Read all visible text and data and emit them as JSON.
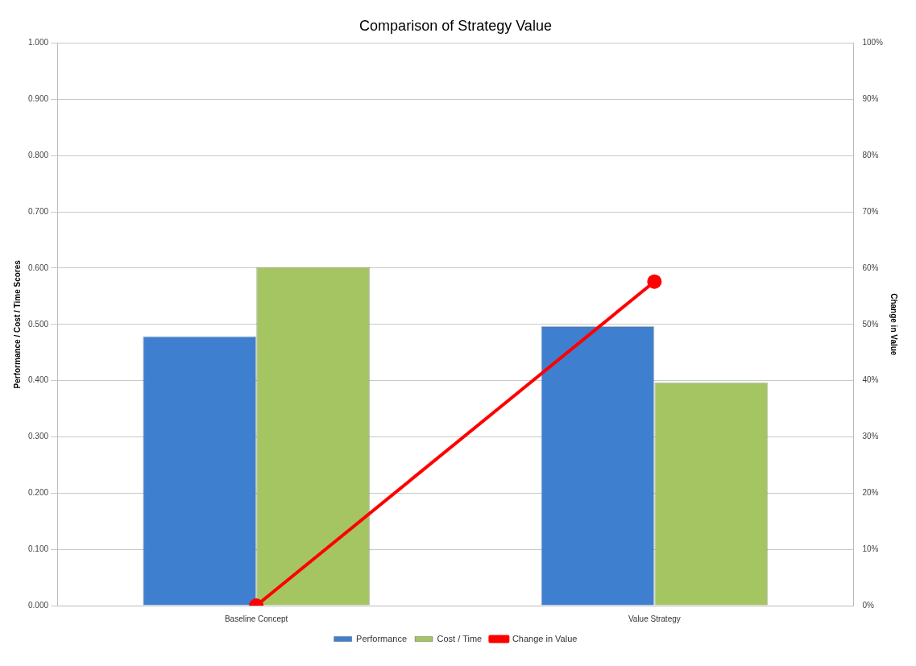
{
  "chart_data": {
    "type": "bar",
    "title": "Comparison of Strategy Value",
    "categories": [
      "Baseline Concept",
      "Value Strategy"
    ],
    "series": [
      {
        "name": "Performance",
        "color": "#3f7fcf",
        "values": [
          0.479,
          0.497
        ]
      },
      {
        "name": "Cost / Time",
        "color": "#a5c563",
        "values": [
          0.602,
          0.397
        ]
      },
      {
        "name": "Change in Value",
        "type": "line",
        "axis": "y2",
        "color": "#ff0000",
        "values": [
          0,
          57.6
        ]
      }
    ],
    "ylabel": "Performance / Cost / Time Scores",
    "y2label": "Change in Value",
    "ylim": [
      0,
      1
    ],
    "yticks": [
      {
        "value": 0,
        "label": "0.000"
      },
      {
        "value": 0.1,
        "label": "0.100"
      },
      {
        "value": 0.2,
        "label": "0.200"
      },
      {
        "value": 0.3,
        "label": "0.300"
      },
      {
        "value": 0.4,
        "label": "0.400"
      },
      {
        "value": 0.5,
        "label": "0.500"
      },
      {
        "value": 0.6,
        "label": "0.600"
      },
      {
        "value": 0.7,
        "label": "0.700"
      },
      {
        "value": 0.8,
        "label": "0.800"
      },
      {
        "value": 0.9,
        "label": "0.900"
      },
      {
        "value": 1,
        "label": "1.000"
      }
    ],
    "y2lim": [
      0,
      100
    ],
    "y2ticks": [
      {
        "value": 0,
        "label": "0%"
      },
      {
        "value": 10,
        "label": "10%"
      },
      {
        "value": 20,
        "label": "20%"
      },
      {
        "value": 30,
        "label": "30%"
      },
      {
        "value": 40,
        "label": "40%"
      },
      {
        "value": 50,
        "label": "50%"
      },
      {
        "value": 60,
        "label": "60%"
      },
      {
        "value": 70,
        "label": "70%"
      },
      {
        "value": 80,
        "label": "80%"
      },
      {
        "value": 90,
        "label": "90%"
      },
      {
        "value": 100,
        "label": "100%"
      }
    ],
    "grid": "y",
    "legend": "bottom",
    "marker": "circle"
  }
}
